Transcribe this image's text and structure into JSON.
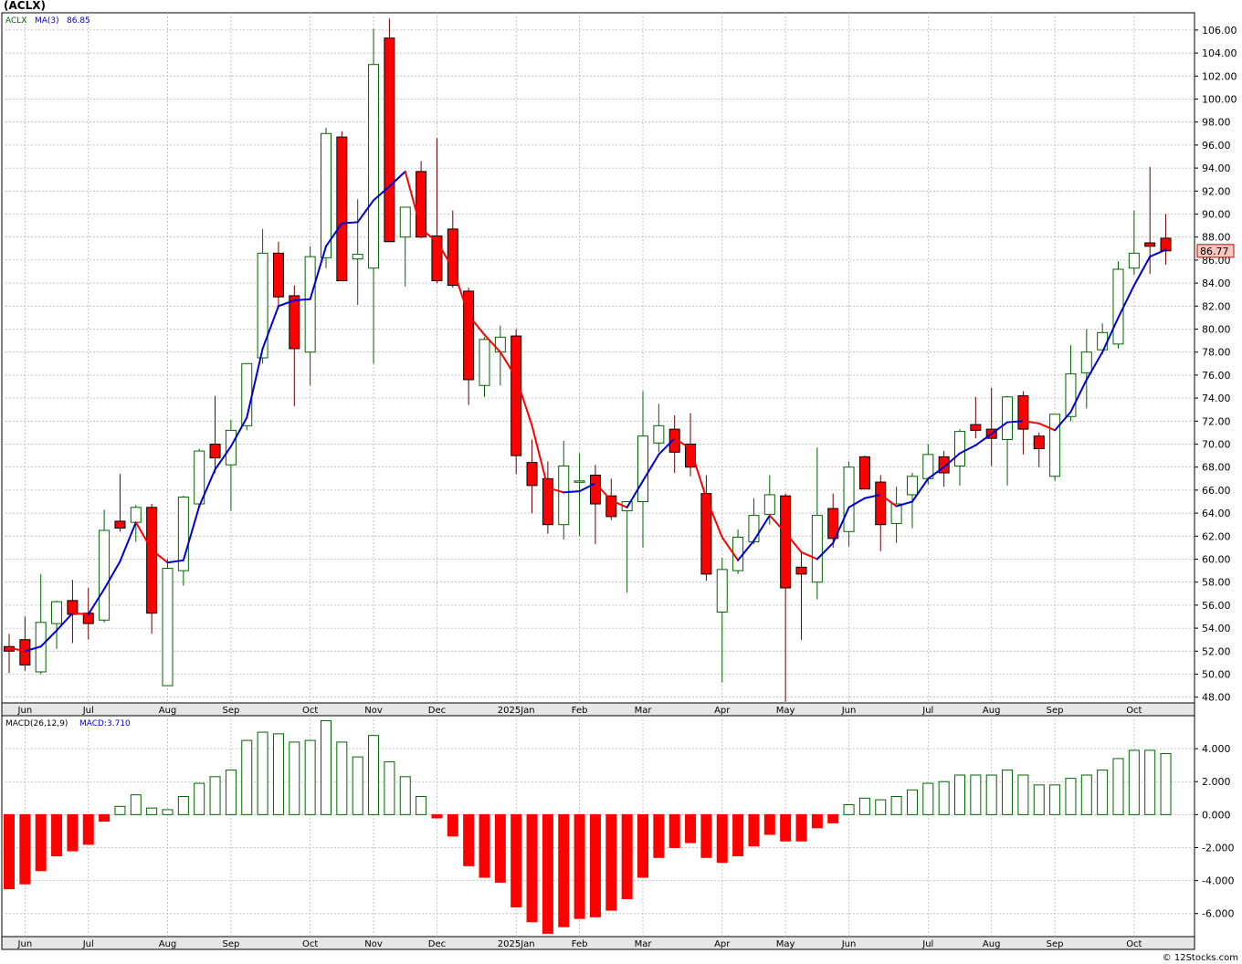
{
  "header": {
    "ticker_title": "(ACLX)",
    "symbol_label": "ACLX",
    "ma_label": "MA(3)",
    "ma_value": "86.85",
    "last_price": "86.77",
    "macd_label": "MACD(26,12,9)",
    "macd_value_label": "MACD:3.710",
    "copyright": "© 12Stocks.com"
  },
  "colors": {
    "up": "#006400",
    "down_fill": "#ff0000",
    "ma_up": "#0000cc",
    "ma_down": "#ff0000",
    "macd_pos": "#006400",
    "macd_neg": "#ff0000",
    "grid": "#b4b4b4",
    "axis_bg": "#e6e6e6"
  },
  "chart_data": [
    {
      "type": "candlestick",
      "title": "(ACLX)",
      "ylim": [
        47.5,
        107.5
      ],
      "y_ticks": [
        "48.00",
        "50.00",
        "52.00",
        "54.00",
        "56.00",
        "58.00",
        "60.00",
        "62.00",
        "64.00",
        "66.00",
        "68.00",
        "70.00",
        "72.00",
        "74.00",
        "76.00",
        "78.00",
        "80.00",
        "82.00",
        "84.00",
        "86.00",
        "88.00",
        "90.00",
        "92.00",
        "94.00",
        "96.00",
        "98.00",
        "100.00",
        "102.00",
        "104.00",
        "106.00"
      ],
      "month_labels": [
        {
          "label": "Jun",
          "week": 1
        },
        {
          "label": "Jul",
          "week": 5
        },
        {
          "label": "Aug",
          "week": 10
        },
        {
          "label": "Sep",
          "week": 14
        },
        {
          "label": "Oct",
          "week": 19
        },
        {
          "label": "Nov",
          "week": 23
        },
        {
          "label": "Dec",
          "week": 27
        },
        {
          "label": "2025Jan",
          "week": 32
        },
        {
          "label": "Feb",
          "week": 36
        },
        {
          "label": "Mar",
          "week": 40
        },
        {
          "label": "Apr",
          "week": 45
        },
        {
          "label": "May",
          "week": 49
        },
        {
          "label": "Jun",
          "week": 53
        },
        {
          "label": "Jul",
          "week": 58
        },
        {
          "label": "Aug",
          "week": 62
        },
        {
          "label": "Sep",
          "week": 66
        },
        {
          "label": "Oct",
          "week": 71
        }
      ],
      "candles": [
        {
          "o": 52.4,
          "h": 53.5,
          "l": 50.1,
          "c": 52.0
        },
        {
          "o": 53.0,
          "h": 55.0,
          "l": 50.3,
          "c": 50.8
        },
        {
          "o": 50.2,
          "h": 58.7,
          "l": 50.0,
          "c": 54.5
        },
        {
          "o": 54.4,
          "h": 56.4,
          "l": 52.2,
          "c": 56.3
        },
        {
          "o": 56.4,
          "h": 58.2,
          "l": 52.7,
          "c": 55.2
        },
        {
          "o": 55.3,
          "h": 57.5,
          "l": 53.0,
          "c": 54.4
        },
        {
          "o": 54.7,
          "h": 64.3,
          "l": 54.5,
          "c": 62.5
        },
        {
          "o": 63.3,
          "h": 67.4,
          "l": 62.4,
          "c": 62.7
        },
        {
          "o": 63.2,
          "h": 64.7,
          "l": 61.5,
          "c": 64.5
        },
        {
          "o": 64.5,
          "h": 64.8,
          "l": 53.5,
          "c": 55.3
        },
        {
          "o": 49.0,
          "h": 60.0,
          "l": 49.0,
          "c": 59.2
        },
        {
          "o": 59.0,
          "h": 65.5,
          "l": 57.7,
          "c": 65.4
        },
        {
          "o": 64.8,
          "h": 69.6,
          "l": 64.5,
          "c": 69.4
        },
        {
          "o": 70.0,
          "h": 74.2,
          "l": 67.5,
          "c": 68.8
        },
        {
          "o": 68.2,
          "h": 72.1,
          "l": 64.2,
          "c": 71.2
        },
        {
          "o": 71.6,
          "h": 76.9,
          "l": 71.2,
          "c": 77.0
        },
        {
          "o": 77.5,
          "h": 88.7,
          "l": 77.0,
          "c": 86.6
        },
        {
          "o": 86.6,
          "h": 87.6,
          "l": 81.8,
          "c": 82.8
        },
        {
          "o": 82.9,
          "h": 83.8,
          "l": 73.3,
          "c": 78.3
        },
        {
          "o": 78.0,
          "h": 87.2,
          "l": 75.1,
          "c": 86.3
        },
        {
          "o": 86.2,
          "h": 97.5,
          "l": 85.3,
          "c": 97.0
        },
        {
          "o": 96.7,
          "h": 97.2,
          "l": 84.2,
          "c": 84.2
        },
        {
          "o": 86.1,
          "h": 91.3,
          "l": 82.1,
          "c": 86.5
        },
        {
          "o": 85.3,
          "h": 106.1,
          "l": 77.0,
          "c": 103.0
        },
        {
          "o": 105.3,
          "h": 107.0,
          "l": 87.6,
          "c": 87.6
        },
        {
          "o": 88.0,
          "h": 90.4,
          "l": 83.7,
          "c": 90.6
        },
        {
          "o": 93.7,
          "h": 94.6,
          "l": 87.9,
          "c": 88.0
        },
        {
          "o": 88.1,
          "h": 96.6,
          "l": 84.0,
          "c": 84.2
        },
        {
          "o": 88.7,
          "h": 90.3,
          "l": 83.6,
          "c": 83.8
        },
        {
          "o": 83.3,
          "h": 83.6,
          "l": 73.4,
          "c": 75.6
        },
        {
          "o": 75.1,
          "h": 79.3,
          "l": 74.1,
          "c": 79.1
        },
        {
          "o": 78.0,
          "h": 80.3,
          "l": 75.1,
          "c": 79.3
        },
        {
          "o": 79.4,
          "h": 80.0,
          "l": 67.4,
          "c": 69.0
        },
        {
          "o": 68.4,
          "h": 70.4,
          "l": 64.0,
          "c": 66.4
        },
        {
          "o": 67.0,
          "h": 68.5,
          "l": 62.2,
          "c": 63.0
        },
        {
          "o": 63.0,
          "h": 70.3,
          "l": 61.7,
          "c": 68.1
        },
        {
          "o": 66.8,
          "h": 69.2,
          "l": 62.0,
          "c": 66.8
        },
        {
          "o": 67.3,
          "h": 68.2,
          "l": 61.3,
          "c": 64.8
        },
        {
          "o": 65.5,
          "h": 67.0,
          "l": 63.4,
          "c": 63.7
        },
        {
          "o": 64.2,
          "h": 65.0,
          "l": 57.1,
          "c": 65.0
        },
        {
          "o": 65.0,
          "h": 74.6,
          "l": 61.0,
          "c": 70.7
        },
        {
          "o": 70.1,
          "h": 73.5,
          "l": 69.3,
          "c": 71.6
        },
        {
          "o": 71.3,
          "h": 72.5,
          "l": 67.5,
          "c": 69.3
        },
        {
          "o": 70.0,
          "h": 72.7,
          "l": 67.2,
          "c": 68.0
        },
        {
          "o": 65.7,
          "h": 67.3,
          "l": 58.1,
          "c": 58.7
        },
        {
          "o": 55.4,
          "h": 60.1,
          "l": 49.3,
          "c": 59.1
        },
        {
          "o": 59.0,
          "h": 62.6,
          "l": 58.7,
          "c": 61.9
        },
        {
          "o": 61.5,
          "h": 65.3,
          "l": 61.3,
          "c": 63.8
        },
        {
          "o": 63.9,
          "h": 67.3,
          "l": 63.0,
          "c": 65.6
        },
        {
          "o": 65.5,
          "h": 65.7,
          "l": 47.6,
          "c": 57.5
        },
        {
          "o": 59.3,
          "h": 60.6,
          "l": 53.0,
          "c": 58.7
        },
        {
          "o": 58.0,
          "h": 69.7,
          "l": 56.5,
          "c": 63.8
        },
        {
          "o": 64.4,
          "h": 65.7,
          "l": 61.0,
          "c": 61.8
        },
        {
          "o": 62.4,
          "h": 68.5,
          "l": 61.1,
          "c": 68.0
        },
        {
          "o": 68.9,
          "h": 69.0,
          "l": 66.1,
          "c": 66.1
        },
        {
          "o": 66.7,
          "h": 67.3,
          "l": 60.7,
          "c": 63.0
        },
        {
          "o": 63.1,
          "h": 66.3,
          "l": 61.4,
          "c": 64.8
        },
        {
          "o": 65.6,
          "h": 67.5,
          "l": 62.7,
          "c": 67.2
        },
        {
          "o": 67.0,
          "h": 70.0,
          "l": 66.5,
          "c": 69.1
        },
        {
          "o": 68.9,
          "h": 69.4,
          "l": 66.3,
          "c": 67.5
        },
        {
          "o": 68.1,
          "h": 71.3,
          "l": 66.4,
          "c": 71.1
        },
        {
          "o": 71.7,
          "h": 74.1,
          "l": 70.5,
          "c": 71.2
        },
        {
          "o": 71.3,
          "h": 74.9,
          "l": 68.1,
          "c": 70.5
        },
        {
          "o": 70.4,
          "h": 74.2,
          "l": 66.4,
          "c": 74.1
        },
        {
          "o": 74.2,
          "h": 74.6,
          "l": 69.1,
          "c": 71.3
        },
        {
          "o": 70.7,
          "h": 71.0,
          "l": 68.0,
          "c": 69.6
        },
        {
          "o": 67.2,
          "h": 72.5,
          "l": 66.8,
          "c": 72.6
        },
        {
          "o": 72.4,
          "h": 78.6,
          "l": 72.0,
          "c": 76.1
        },
        {
          "o": 76.2,
          "h": 80.0,
          "l": 73.1,
          "c": 78.0
        },
        {
          "o": 78.2,
          "h": 80.5,
          "l": 77.8,
          "c": 79.7
        },
        {
          "o": 78.7,
          "h": 85.9,
          "l": 78.3,
          "c": 85.2
        },
        {
          "o": 85.3,
          "h": 90.3,
          "l": 84.7,
          "c": 86.6
        },
        {
          "o": 87.5,
          "h": 94.1,
          "l": 84.8,
          "c": 87.2
        },
        {
          "o": 87.9,
          "h": 90.0,
          "l": 85.6,
          "c": 86.8
        }
      ],
      "ma3": [
        52.3,
        52.0,
        52.4,
        53.8,
        55.3,
        55.2,
        57.4,
        59.8,
        63.2,
        60.8,
        59.7,
        59.9,
        64.6,
        67.8,
        69.8,
        72.3,
        78.3,
        82.0,
        82.5,
        82.6,
        87.2,
        89.2,
        89.3,
        91.2,
        92.4,
        93.7,
        88.7,
        87.6,
        85.3,
        81.2,
        79.5,
        78.0,
        75.8,
        71.6,
        66.2,
        65.8,
        65.9,
        66.6,
        65.1,
        64.5,
        66.8,
        69.1,
        70.5,
        69.6,
        65.3,
        61.9,
        59.9,
        61.6,
        63.8,
        62.3,
        60.6,
        60.0,
        61.4,
        64.5,
        65.3,
        65.6,
        64.6,
        65.0,
        67.0,
        68.0,
        69.2,
        69.9,
        70.9,
        71.9,
        72.0,
        71.8,
        71.2,
        72.8,
        75.6,
        78.0,
        81.0,
        83.8,
        86.3,
        86.9
      ],
      "macd": [
        -4.5,
        -4.2,
        -3.4,
        -2.5,
        -2.2,
        -1.8,
        -0.4,
        0.5,
        1.2,
        0.4,
        0.3,
        1.1,
        1.9,
        2.3,
        2.7,
        4.5,
        5.0,
        4.9,
        4.4,
        4.5,
        5.7,
        4.4,
        3.5,
        4.8,
        3.2,
        2.3,
        1.1,
        -0.2,
        -1.3,
        -3.1,
        -3.8,
        -4.1,
        -5.6,
        -6.5,
        -7.2,
        -6.8,
        -6.3,
        -6.2,
        -5.8,
        -5.1,
        -3.8,
        -2.6,
        -2.0,
        -1.7,
        -2.6,
        -2.9,
        -2.5,
        -1.9,
        -1.2,
        -1.6,
        -1.6,
        -0.8,
        -0.5,
        0.6,
        1.0,
        0.9,
        1.1,
        1.5,
        1.9,
        2.0,
        2.4,
        2.4,
        2.4,
        2.7,
        2.4,
        1.8,
        1.8,
        2.2,
        2.4,
        2.7,
        3.4,
        3.9,
        3.9,
        3.7
      ],
      "macd_ylim": [
        -7.4,
        6.0
      ],
      "macd_ticks": [
        "-6.000",
        "-4.000",
        "-2.000",
        "0.000",
        "2.000",
        "4.000"
      ]
    }
  ]
}
